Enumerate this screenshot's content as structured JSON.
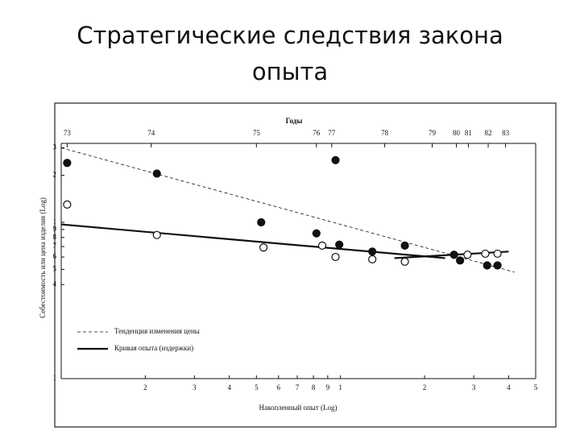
{
  "title": "Стратегические следствия закона опыта",
  "chart_data": {
    "type": "scatter",
    "top_axis_label": "Годы",
    "x_label": "Накопленный опыт (Log)",
    "y_label": "Себестоимость или цена изделия (Log)",
    "log_x": true,
    "log_y": true,
    "color": "#111111",
    "xlim": [
      1,
      50
    ],
    "xticks": [
      2,
      3,
      4,
      5,
      6,
      7,
      8,
      9,
      {
        "value": 10,
        "label": "1"
      },
      {
        "value": 20,
        "label": "2"
      },
      {
        "value": 30,
        "label": "3"
      },
      {
        "value": 40,
        "label": "4"
      },
      {
        "value": 50,
        "label": "5"
      }
    ],
    "ylim": [
      1,
      32
    ],
    "yticks": [
      {
        "value": 30,
        "label": "3"
      },
      {
        "value": 20,
        "label": "2"
      },
      {
        "value": 10,
        "label": "1"
      },
      9,
      8,
      7,
      6,
      5,
      4,
      1
    ],
    "top_ticks": [
      {
        "value": 1.05,
        "label": "73"
      },
      {
        "value": 2.1,
        "label": "74"
      },
      {
        "value": 5,
        "label": "75"
      },
      {
        "value": 8.2,
        "label": "76"
      },
      {
        "value": 9.3,
        "label": "77"
      },
      {
        "value": 14.4,
        "label": "78"
      },
      {
        "value": 21.3,
        "label": "79"
      },
      {
        "value": 26,
        "label": "80"
      },
      {
        "value": 28.7,
        "label": "81"
      },
      {
        "value": 33.8,
        "label": "82"
      },
      {
        "value": 39,
        "label": "83"
      }
    ],
    "points": [
      {
        "marker": "filled",
        "x": [
          1.05,
          2.2,
          5.2,
          9.6,
          8.2,
          9.9,
          13,
          17,
          25.5,
          26.8,
          33.5,
          36.5
        ],
        "y": [
          24,
          20.5,
          10,
          25,
          8.5,
          7.2,
          6.5,
          7.1,
          6.2,
          5.7,
          5.3,
          5.3
        ]
      },
      {
        "marker": "open",
        "x": [
          1.05,
          2.2,
          5.3,
          8.6,
          9.6,
          13,
          17,
          28.5,
          33,
          36.5
        ],
        "y": [
          13,
          8.3,
          6.9,
          7.1,
          6.0,
          5.8,
          5.6,
          6.2,
          6.3,
          6.3
        ]
      }
    ],
    "lines": [
      {
        "name": "Тенденция изменения цены",
        "dash": true,
        "x": [
          1,
          42
        ],
        "y": [
          30,
          4.8
        ]
      },
      {
        "name": "Кривая опыта (издержки)",
        "dash": false,
        "x": [
          1,
          23.7
        ],
        "y": [
          9.7,
          5.9
        ]
      },
      {
        "dash": false,
        "x": [
          15.6,
          40
        ],
        "y": [
          5.9,
          6.5
        ]
      }
    ]
  }
}
